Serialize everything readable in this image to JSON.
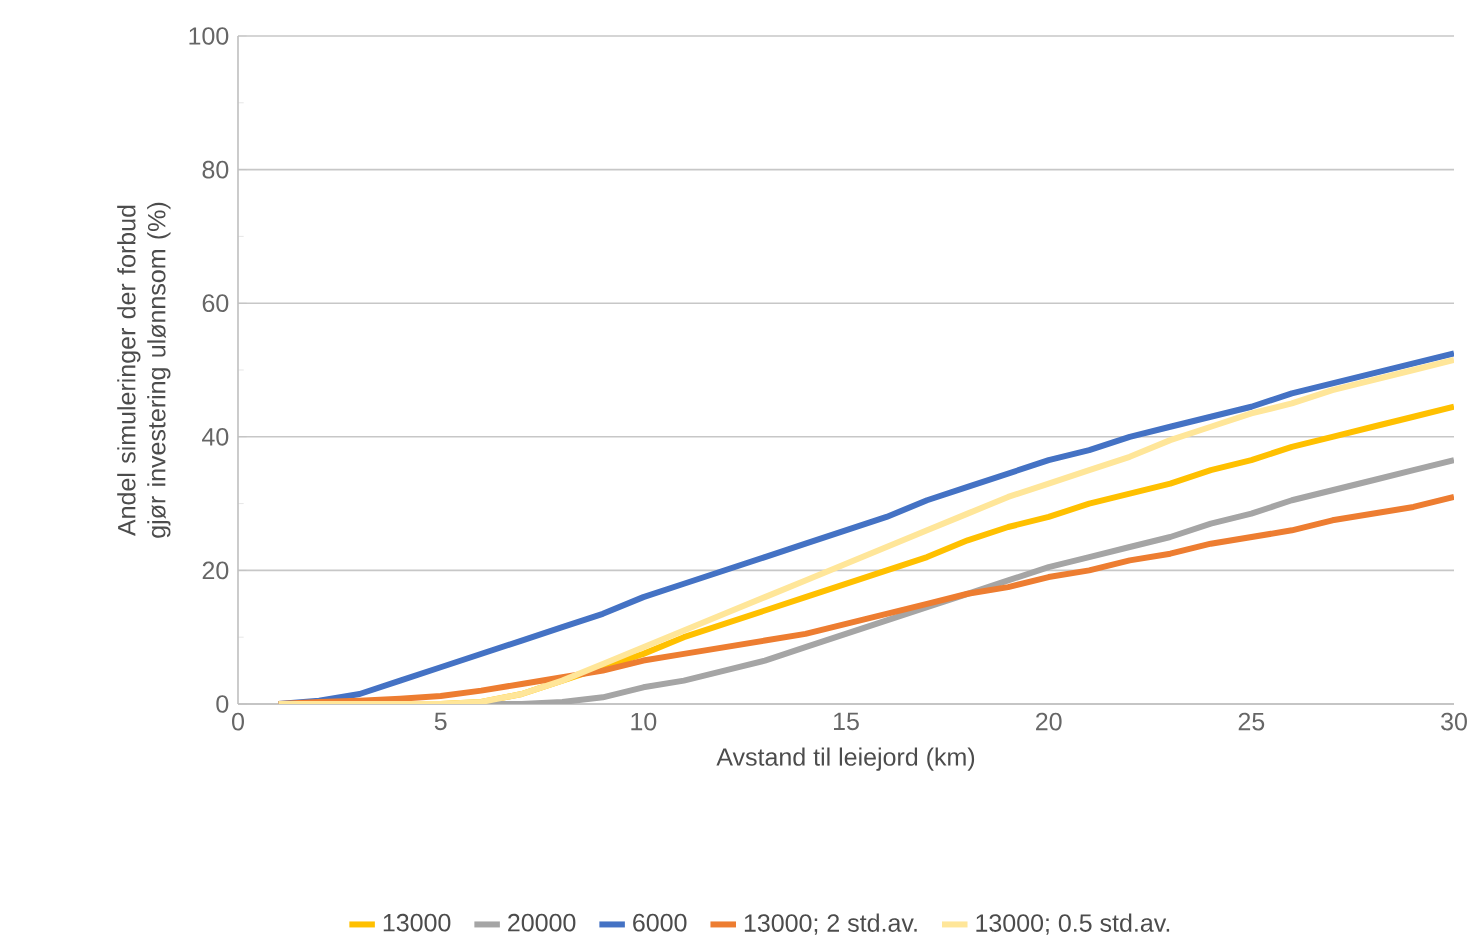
{
  "chart_data": {
    "type": "line",
    "xlabel": "Avstand til leiejord (km)",
    "ylabel": "Andel simuleringer der forbud gjør investering ulønnsom (%)",
    "x": [
      1,
      2,
      3,
      4,
      5,
      6,
      7,
      8,
      9,
      10,
      11,
      12,
      13,
      14,
      15,
      16,
      17,
      18,
      19,
      20,
      21,
      22,
      23,
      24,
      25,
      26,
      27,
      28,
      29,
      30
    ],
    "xlim": [
      0,
      30
    ],
    "xticks": [
      0,
      5,
      10,
      15,
      20,
      25,
      30
    ],
    "ylim": [
      0,
      100
    ],
    "yticks": [
      0,
      20,
      40,
      60,
      80,
      100
    ],
    "grid": "y",
    "legend": "bottom",
    "marker": "none",
    "line_style": "solid",
    "series": [
      {
        "name": "13000",
        "color": "#ffc000",
        "values": [
          null,
          null,
          null,
          0,
          0,
          0.3,
          1.5,
          3.5,
          5.5,
          7.5,
          10,
          12,
          14,
          16,
          18,
          20,
          22,
          24.5,
          26.5,
          28,
          30,
          31.5,
          33,
          35,
          36.5,
          38.5,
          40,
          41.5,
          43,
          44.5
        ]
      },
      {
        "name": "20000",
        "color": "#a5a5a5",
        "values": [
          0,
          0,
          0,
          0,
          0,
          0,
          0,
          0.3,
          1,
          2.5,
          3.5,
          5,
          6.5,
          8.5,
          10.5,
          12.5,
          14.5,
          16.5,
          18.5,
          20.5,
          22,
          23.5,
          25,
          27,
          28.5,
          30.5,
          32,
          33.5,
          35,
          36.5
        ]
      },
      {
        "name": "6000",
        "color": "#4472c4",
        "values": [
          0,
          0.5,
          1.5,
          3.5,
          5.5,
          7.5,
          9.5,
          11.5,
          13.5,
          16,
          18,
          20,
          22,
          24,
          26,
          28,
          30.5,
          32.5,
          34.5,
          36.5,
          38,
          40,
          41.5,
          43,
          44.5,
          46.5,
          48,
          49.5,
          51,
          52.5
        ]
      },
      {
        "name": "13000; 2 std.av.",
        "color": "#ed7d31",
        "values": [
          0,
          0.3,
          0.5,
          0.8,
          1.2,
          2,
          3,
          4,
          5,
          6.5,
          7.5,
          8.5,
          9.5,
          10.5,
          12,
          13.5,
          15,
          16.5,
          17.5,
          19,
          20,
          21.5,
          22.5,
          24,
          25,
          26,
          27.5,
          28.5,
          29.5,
          31
        ]
      },
      {
        "name": "13000; 0.5 std.av.",
        "color": "#ffe699",
        "values": [
          0,
          0,
          0,
          0,
          0,
          0.3,
          1.5,
          3.5,
          6,
          8.5,
          11,
          13.5,
          16,
          18.5,
          21,
          23.5,
          26,
          28.5,
          31,
          33,
          35,
          37,
          39.5,
          41.5,
          43.5,
          45,
          47,
          48.5,
          50,
          51.5
        ]
      }
    ]
  }
}
